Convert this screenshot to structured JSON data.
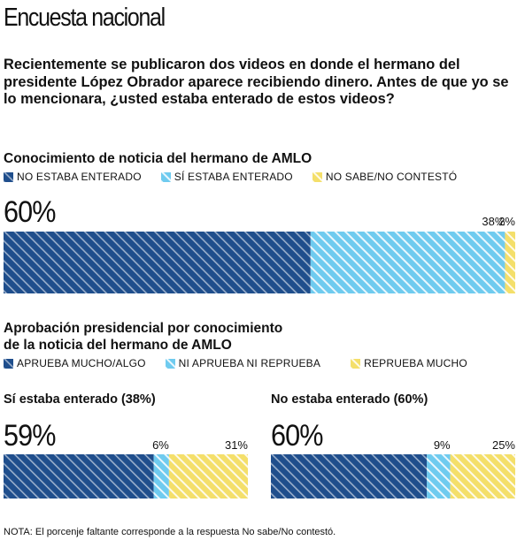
{
  "header": {
    "title": "Encuesta nacional"
  },
  "question": "Recientemente se publicaron dos videos en donde el hermano del presidente López Obrador aparece recibiendo dinero. Antes de que yo se lo mencionara, ¿usted estaba enterado de estos videos?",
  "colors": {
    "dark_blue": "#1f4e8c",
    "light_blue": "#6fcbef",
    "yellow": "#f4df6a"
  },
  "chart_data": [
    {
      "type": "bar",
      "orientation": "horizontal-stacked",
      "title": "Conocimiento de noticia del hermano de AMLO",
      "legend": [
        "NO ESTABA ENTERADO",
        "SÍ ESTABA ENTERADO",
        "NO SABE/NO CONTESTÓ"
      ],
      "legend_placement": "top",
      "series": [
        {
          "name": "NO ESTABA ENTERADO",
          "values": [
            60
          ],
          "label": "60%"
        },
        {
          "name": "SÍ ESTABA ENTERADO",
          "values": [
            38
          ],
          "label": "38%"
        },
        {
          "name": "NO SABE/NO CONTESTÓ",
          "values": [
            2
          ],
          "label": "2%"
        }
      ]
    },
    {
      "type": "bar",
      "orientation": "horizontal-stacked",
      "title_line1": "Aprobación presidencial por conocimiento",
      "title_line2": "de la noticia del hermano de AMLO",
      "legend": [
        "APRUEBA MUCHO/ALGO",
        "NI APRUEBA NI REPRUEBA",
        "REPRUEBA MUCHO"
      ],
      "legend_placement": "top",
      "groups": [
        {
          "name": "Sí estaba enterado (38%)",
          "series": [
            {
              "name": "APRUEBA MUCHO/ALGO",
              "values": [
                59
              ],
              "label": "59%"
            },
            {
              "name": "NI APRUEBA NI REPRUEBA",
              "values": [
                6
              ],
              "label": "6%"
            },
            {
              "name": "REPRUEBA MUCHO",
              "values": [
                31
              ],
              "label": "31%"
            }
          ]
        },
        {
          "name": "No estaba enterado (60%)",
          "series": [
            {
              "name": "APRUEBA MUCHO/ALGO",
              "values": [
                60
              ],
              "label": "60%"
            },
            {
              "name": "NI APRUEBA NI REPRUEBA",
              "values": [
                9
              ],
              "label": "9%"
            },
            {
              "name": "REPRUEBA MUCHO",
              "values": [
                25
              ],
              "label": "25%"
            }
          ]
        }
      ]
    }
  ],
  "note": "NOTA: El porcenje faltante corresponde a la respuesta No sabe/No contestó."
}
